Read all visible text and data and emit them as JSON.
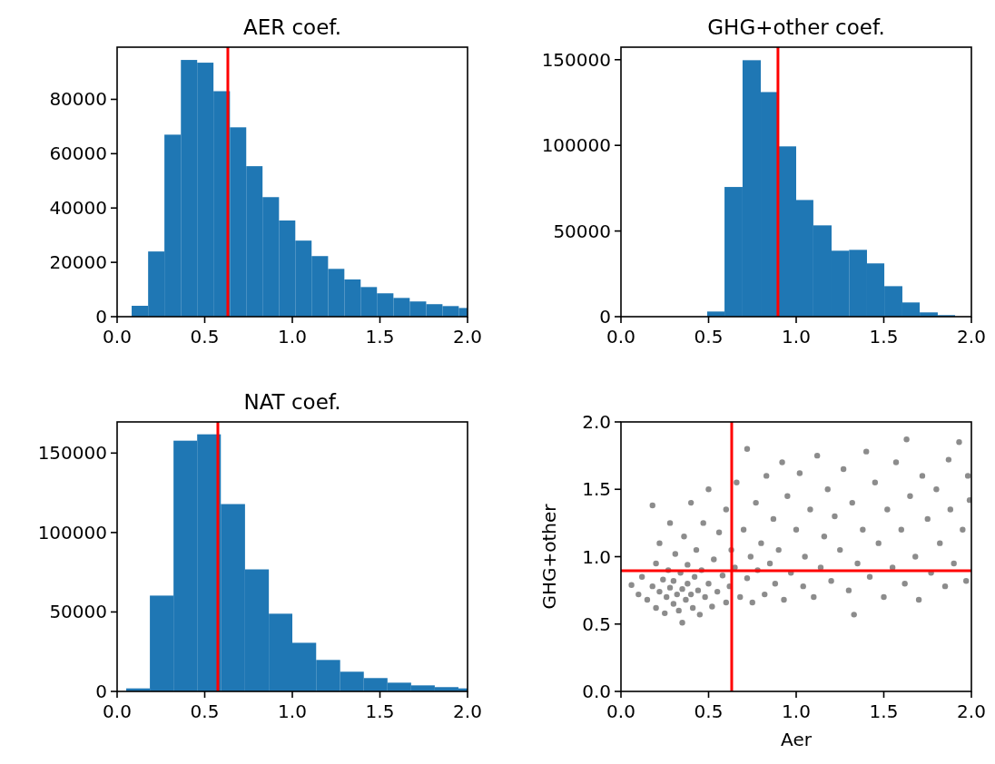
{
  "chart_data": [
    {
      "type": "histogram",
      "title": "AER coef.",
      "color": "#1f77b4",
      "bins": [
        0.083,
        0.177,
        0.27,
        0.364,
        0.457,
        0.55,
        0.644,
        0.737,
        0.83,
        0.924,
        1.017,
        1.11,
        1.204,
        1.297,
        1.39,
        1.483,
        1.577,
        1.67,
        1.764,
        1.857,
        1.95,
        2.0
      ],
      "values": [
        4000,
        24000,
        67000,
        94500,
        93500,
        83000,
        69700,
        55400,
        44000,
        35400,
        28000,
        22300,
        17600,
        13700,
        10900,
        8600,
        6900,
        5600,
        4600,
        3900,
        3200
      ],
      "xlim": [
        0,
        2.0
      ],
      "ylim": [
        0,
        99200
      ],
      "xticks": [
        {
          "value": 0,
          "label": "0.0"
        },
        {
          "value": 0.5,
          "label": "0.5"
        },
        {
          "value": 1,
          "label": "1.0"
        },
        {
          "value": 1.5,
          "label": "1.5"
        },
        {
          "value": 2,
          "label": "2.0"
        }
      ],
      "yticks": [
        0,
        20000,
        40000,
        60000,
        80000
      ],
      "ref_lines": [
        {
          "axis": "x",
          "value": 0.632,
          "color": "#ff0000"
        }
      ]
    },
    {
      "type": "histogram",
      "title": "GHG+other coef.",
      "color": "#1f77b4",
      "bins": [
        0.492,
        0.591,
        0.694,
        0.798,
        0.896,
        1.0,
        1.098,
        1.202,
        1.302,
        1.404,
        1.503,
        1.606,
        1.705,
        1.808,
        1.907
      ],
      "values": [
        3000,
        75700,
        149700,
        131100,
        99400,
        68100,
        53300,
        38500,
        39000,
        31100,
        17800,
        8300,
        2500,
        900
      ],
      "xlim": [
        0,
        2.0
      ],
      "ylim": [
        0,
        157300
      ],
      "xticks": [
        {
          "value": 0,
          "label": "0.0"
        },
        {
          "value": 0.5,
          "label": "0.5"
        },
        {
          "value": 1,
          "label": "1.0"
        },
        {
          "value": 1.5,
          "label": "1.5"
        },
        {
          "value": 2,
          "label": "2.0"
        }
      ],
      "yticks": [
        0,
        50000,
        100000,
        150000
      ],
      "ref_lines": [
        {
          "axis": "x",
          "value": 0.896,
          "color": "#ff0000"
        }
      ]
    },
    {
      "type": "histogram",
      "title": "NAT coef.",
      "color": "#1f77b4",
      "bins": [
        0.052,
        0.187,
        0.322,
        0.457,
        0.592,
        0.73,
        0.866,
        1.0,
        1.136,
        1.273,
        1.408,
        1.543,
        1.678,
        1.813,
        1.948,
        2.0
      ],
      "values": [
        1900,
        60300,
        157800,
        161800,
        117900,
        76800,
        48900,
        30600,
        19800,
        12400,
        8400,
        5500,
        3800,
        2700,
        1900
      ],
      "xlim": [
        0,
        2.0
      ],
      "ylim": [
        0,
        169600
      ],
      "xticks": [
        {
          "value": 0,
          "label": "0.0"
        },
        {
          "value": 0.5,
          "label": "0.5"
        },
        {
          "value": 1,
          "label": "1.0"
        },
        {
          "value": 1.5,
          "label": "1.5"
        },
        {
          "value": 2,
          "label": "2.0"
        }
      ],
      "yticks": [
        0,
        50000,
        100000,
        150000
      ],
      "ref_lines": [
        {
          "axis": "x",
          "value": 0.575,
          "color": "#ff0000"
        }
      ]
    },
    {
      "type": "scatter",
      "xlabel": "Aer",
      "ylabel": "GHG+other",
      "color": "#000000",
      "marker": "circle",
      "x": [
        0.06,
        0.1,
        0.12,
        0.15,
        0.18,
        0.18,
        0.2,
        0.2,
        0.22,
        0.22,
        0.24,
        0.25,
        0.26,
        0.27,
        0.28,
        0.28,
        0.3,
        0.3,
        0.31,
        0.32,
        0.33,
        0.34,
        0.35,
        0.35,
        0.36,
        0.37,
        0.38,
        0.38,
        0.4,
        0.4,
        0.41,
        0.42,
        0.43,
        0.44,
        0.45,
        0.46,
        0.47,
        0.48,
        0.5,
        0.5,
        0.52,
        0.53,
        0.55,
        0.56,
        0.58,
        0.6,
        0.6,
        0.62,
        0.63,
        0.65,
        0.66,
        0.68,
        0.7,
        0.72,
        0.72,
        0.74,
        0.75,
        0.77,
        0.78,
        0.8,
        0.82,
        0.83,
        0.85,
        0.87,
        0.88,
        0.9,
        0.92,
        0.93,
        0.95,
        0.97,
        1.0,
        1.02,
        1.04,
        1.05,
        1.08,
        1.1,
        1.12,
        1.14,
        1.16,
        1.18,
        1.2,
        1.22,
        1.25,
        1.27,
        1.3,
        1.32,
        1.33,
        1.35,
        1.38,
        1.4,
        1.42,
        1.45,
        1.47,
        1.5,
        1.52,
        1.55,
        1.57,
        1.6,
        1.62,
        1.63,
        1.65,
        1.68,
        1.7,
        1.72,
        1.75,
        1.77,
        1.8,
        1.82,
        1.85,
        1.87,
        1.88,
        1.9,
        1.93,
        1.95,
        1.97,
        1.98,
        1.99
      ],
      "values": [
        0.79,
        0.72,
        0.85,
        0.68,
        1.38,
        0.78,
        0.95,
        0.62,
        0.74,
        1.1,
        0.83,
        0.58,
        0.7,
        0.9,
        1.25,
        0.77,
        0.65,
        0.82,
        1.02,
        0.72,
        0.6,
        0.88,
        0.51,
        0.76,
        1.15,
        0.68,
        0.8,
        0.94,
        0.72,
        1.4,
        0.62,
        0.85,
        1.05,
        0.75,
        0.57,
        0.9,
        1.25,
        0.7,
        0.8,
        1.5,
        0.63,
        0.98,
        0.74,
        1.18,
        0.86,
        0.66,
        1.35,
        0.78,
        1.05,
        0.92,
        1.55,
        0.7,
        1.2,
        0.84,
        1.8,
        1.0,
        0.66,
        1.4,
        0.9,
        1.1,
        0.72,
        1.6,
        0.95,
        1.28,
        0.8,
        1.05,
        1.7,
        0.68,
        1.45,
        0.88,
        1.2,
        1.62,
        0.78,
        1.0,
        1.35,
        0.7,
        1.75,
        0.92,
        1.15,
        1.5,
        0.82,
        1.3,
        1.05,
        1.65,
        0.75,
        1.4,
        0.57,
        0.95,
        1.2,
        1.78,
        0.85,
        1.55,
        1.1,
        0.7,
        1.35,
        0.92,
        1.7,
        1.2,
        0.8,
        1.87,
        1.45,
        1.0,
        0.68,
        1.6,
        1.28,
        0.88,
        1.5,
        1.1,
        0.78,
        1.72,
        1.35,
        0.95,
        1.85,
        1.2,
        0.82,
        1.6,
        1.42
      ],
      "xlim": [
        0,
        2.0
      ],
      "ylim": [
        0,
        2.0
      ],
      "xticks": [
        {
          "value": 0,
          "label": "0.0"
        },
        {
          "value": 0.5,
          "label": "0.5"
        },
        {
          "value": 1,
          "label": "1.0"
        },
        {
          "value": 1.5,
          "label": "1.5"
        },
        {
          "value": 2,
          "label": "2.0"
        }
      ],
      "yticks": [
        {
          "value": 0,
          "label": "0.0"
        },
        {
          "value": 0.5,
          "label": "0.5"
        },
        {
          "value": 1,
          "label": "1.0"
        },
        {
          "value": 1.5,
          "label": "1.5"
        },
        {
          "value": 2,
          "label": "2.0"
        }
      ],
      "ref_lines": [
        {
          "axis": "x",
          "value": 0.632,
          "color": "#ff0000"
        },
        {
          "axis": "y",
          "value": 0.896,
          "color": "#ff0000"
        }
      ]
    }
  ]
}
